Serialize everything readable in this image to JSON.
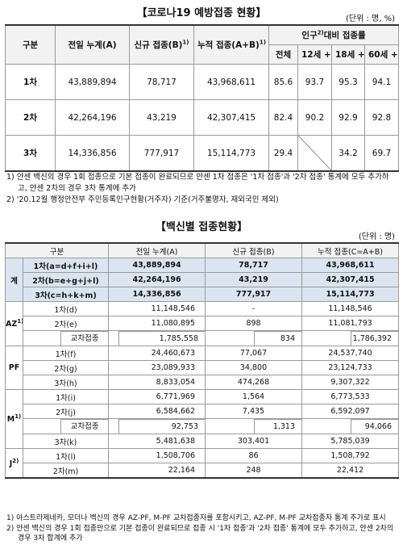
{
  "title1": "【코로나19 예방접종 현황】",
  "unit1": "(단위 : 명, %)",
  "table1": {
    "header": {
      "category": "구분",
      "prev": "전일 누계(A)",
      "new": "신규 접종(B)",
      "new_note": "1)",
      "total": "누적 접종(A+B)",
      "total_note": "1)",
      "rate_pre": "인구",
      "rate_note": "2)",
      "rate_post": "대비 접종률",
      "rate_cols": [
        "전체",
        "12세 +",
        "18세 +",
        "60세 +"
      ]
    },
    "rows": [
      {
        "label": "1차",
        "values": [
          "43,889,894",
          "78,717",
          "43,968,611",
          "85.6",
          "93.7",
          "95.3",
          "94.1"
        ]
      },
      {
        "label": "2차",
        "values": [
          "42,264,196",
          "43,219",
          "42,307,415",
          "82.4",
          "90.2",
          "92.9",
          "92.8"
        ]
      },
      {
        "label": "3차",
        "values": [
          "14,336,856",
          "777,917",
          "15,114,773",
          "29.4",
          null,
          "34.2",
          "69.7"
        ]
      }
    ]
  },
  "notes1": [
    "1) 얀센 백신의 경우 1회 접종으로 기본 접종이 완료되므로 얀센 1차 접종은 '1차 접종'과 '2차 접종' 통계에 모두 추가하고, 얀센 2차의 경우 3차 통계에 추가",
    "2) '20.12월 행정안전부 주민등록인구현황(거주자) 기준(거주불명자, 재외국민 제외)"
  ],
  "title2": "【백신별 접종현황】",
  "unit2": "(단위 : 명)",
  "table2": {
    "header": [
      "구분",
      "전일 누계(A)",
      "신규 접종(B)",
      "누적 접종(C=A+B)"
    ],
    "groups": [
      {
        "label": "계",
        "background": "#dbe5f1",
        "rows": [
          {
            "label": "1차(a=d+f+i+l)",
            "values": [
              "43,889,894",
              "78,717",
              "43,968,611"
            ]
          },
          {
            "label": "2차(b=e+g+j+l)",
            "values": [
              "42,264,196",
              "43,219",
              "42,307,415"
            ]
          },
          {
            "label": "3차(c=h+k+m)",
            "values": [
              "14,336,856",
              "777,917",
              "15,114,773"
            ]
          }
        ]
      },
      {
        "label": "AZ",
        "note": "1)",
        "rows": [
          {
            "label": "1차(d)",
            "values": [
              "11,148,546",
              "-",
              "11,148,546"
            ]
          },
          {
            "label": "2차(e)",
            "values": [
              "11,080,895",
              "898",
              "11,081,793"
            ]
          },
          {
            "cross_label": "교차접종",
            "cross_values": [
              "1,785,558",
              "834",
              "1,786,392"
            ]
          }
        ]
      },
      {
        "label": "PF",
        "rows": [
          {
            "label": "1차(f)",
            "values": [
              "24,460,673",
              "77,067",
              "24,537,740"
            ]
          },
          {
            "label": "2차(g)",
            "values": [
              "23,089,933",
              "34,800",
              "23,124,733"
            ]
          },
          {
            "label": "3차(h)",
            "values": [
              "8,833,054",
              "474,268",
              "9,307,322"
            ]
          }
        ]
      },
      {
        "label": "M",
        "note": "1)",
        "rows": [
          {
            "label": "1차(i)",
            "values": [
              "6,771,969",
              "1,564",
              "6,773,533"
            ]
          },
          {
            "label": "2차(j)",
            "values": [
              "6,584,662",
              "7,435",
              "6,592,097"
            ]
          },
          {
            "cross_label": "교차접종",
            "cross_values": [
              "92,753",
              "1,313",
              "94,066"
            ]
          },
          {
            "label": "3차(k)",
            "values": [
              "5,481,638",
              "303,401",
              "5,785,039"
            ]
          }
        ]
      },
      {
        "label": "J",
        "note": "2)",
        "rows": [
          {
            "label": "1차(l)",
            "values": [
              "1,508,706",
              "86",
              "1,508,792"
            ]
          },
          {
            "label": "2차(m)",
            "values": [
              "22,164",
              "248",
              "22,412"
            ]
          }
        ]
      }
    ]
  },
  "notes2": [
    "1) 아스트라제네카, 모더나 백신의 경우 AZ-PF, M-PF 교차접종자를 포함시키고, AZ-PF, M-PF 교차접종자 통계 추가로 표시",
    "2) 얀센 백신의 경우 1회 접종만으로 기본 접종이 완료되므로 접종 시 '1차 접종'과 '2차 접종' 통계에 모두 추가하고, 얀센 2차의 경우 3차 합계에 추가"
  ]
}
